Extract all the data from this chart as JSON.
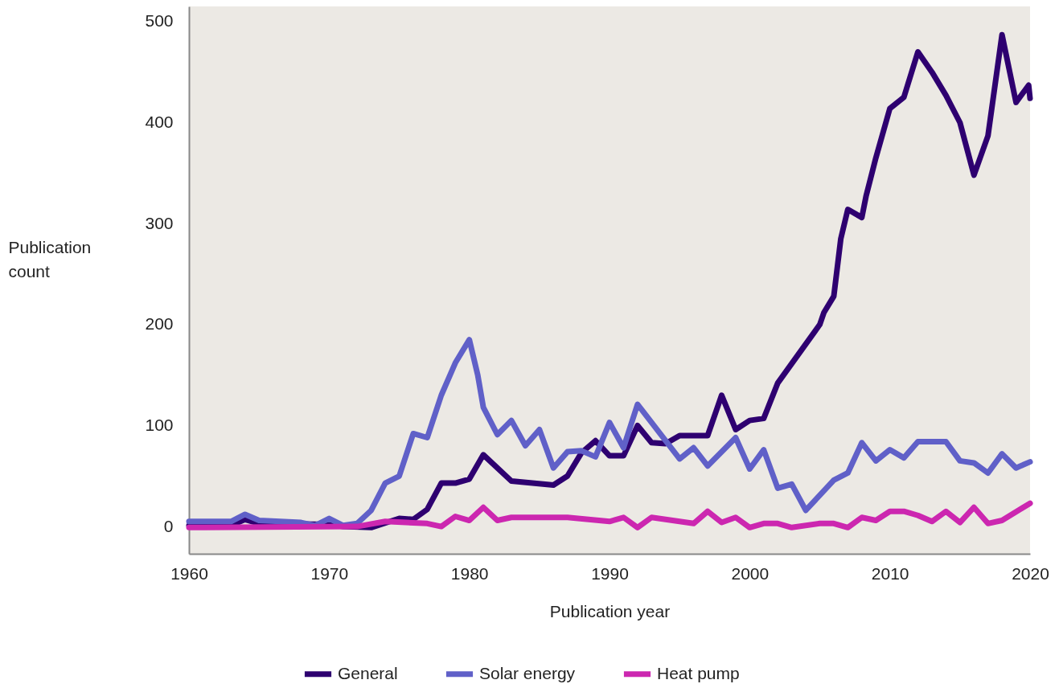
{
  "chart_data": {
    "type": "line",
    "xlabel": "Publication year",
    "ylabel": "Publication count",
    "xlim": [
      1960,
      2020
    ],
    "ylim": [
      -27,
      515
    ],
    "xticks": [
      1960,
      1970,
      1980,
      1990,
      2000,
      2010,
      2020
    ],
    "yticks": [
      0,
      100,
      200,
      300,
      400,
      500
    ],
    "legend": "bottom",
    "line_style": "solid",
    "marker": "none",
    "series": [
      {
        "name": "General",
        "color": "#2e0070",
        "x": [
          1960,
          1963,
          1964,
          1965,
          1970,
          1971,
          1973,
          1975,
          1976,
          1977,
          1978,
          1979,
          1980,
          1981,
          1983,
          1986,
          1987,
          1988,
          1989,
          1990,
          1991,
          1992,
          1993,
          1994,
          1995,
          1997,
          1998,
          1999,
          2000,
          2001,
          2002,
          2005,
          2005.3,
          2006,
          2006.5,
          2007,
          2008,
          2008.3,
          2009,
          2010,
          2011,
          2012,
          2013,
          2014,
          2015,
          2016,
          2017,
          2018,
          2019,
          2019.9,
          2020
        ],
        "values": [
          1,
          1,
          7,
          3,
          2,
          0,
          -1,
          8,
          7,
          17,
          43,
          43,
          47,
          71,
          45,
          41,
          50,
          73,
          85,
          70,
          70,
          100,
          83,
          82,
          90,
          90,
          130,
          96,
          105,
          107,
          142,
          200,
          212,
          228,
          285,
          314,
          306,
          327,
          365,
          414,
          425,
          470,
          450,
          427,
          400,
          348,
          387,
          487,
          420,
          437,
          424
        ]
      },
      {
        "name": "Solar energy",
        "color": "#6060c8",
        "x": [
          1960,
          1963,
          1964,
          1965,
          1968,
          1969,
          1970,
          1971,
          1972,
          1973,
          1974,
          1975,
          1976,
          1977,
          1978,
          1979,
          1980,
          1980.6,
          1981,
          1982,
          1983,
          1984,
          1985,
          1986,
          1987,
          1988,
          1989,
          1990,
          1991,
          1992,
          1995,
          1996,
          1997,
          1999,
          2000,
          2001,
          2002,
          2003,
          2004,
          2005,
          2006,
          2007,
          2008,
          2009,
          2010,
          2011,
          2012,
          2014,
          2015,
          2016,
          2017,
          2018,
          2019,
          2020
        ],
        "values": [
          5,
          5,
          12,
          6,
          4,
          1,
          8,
          1,
          3,
          16,
          43,
          50,
          92,
          88,
          130,
          162,
          185,
          150,
          118,
          91,
          105,
          80,
          96,
          58,
          74,
          75,
          69,
          103,
          78,
          121,
          67,
          78,
          60,
          88,
          57,
          76,
          38,
          42,
          16,
          31,
          46,
          53,
          83,
          65,
          76,
          68,
          84,
          84,
          65,
          63,
          53,
          72,
          58,
          64
        ]
      },
      {
        "name": "Heat pump",
        "color": "#cc27b0",
        "x": [
          1960,
          1972,
          1974,
          1977,
          1978,
          1979,
          1980,
          1981,
          1982,
          1983,
          1987,
          1990,
          1991,
          1992,
          1993,
          1996,
          1997,
          1998,
          1999,
          2000,
          2001,
          2002,
          2003,
          2005,
          2006,
          2007,
          2008,
          2009,
          2010,
          2011,
          2012,
          2013,
          2014,
          2015,
          2016,
          2017,
          2018,
          2020
        ],
        "values": [
          -1,
          0,
          5,
          3,
          0,
          10,
          6,
          19,
          6,
          9,
          9,
          5,
          9,
          -1,
          9,
          3,
          15,
          4,
          9,
          -1,
          3,
          3,
          -1,
          3,
          3,
          -1,
          9,
          6,
          15,
          15,
          11,
          5,
          15,
          4,
          19,
          3,
          6,
          23
        ]
      }
    ]
  }
}
